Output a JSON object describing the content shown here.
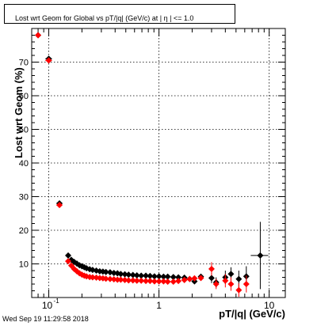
{
  "title": "Lost wrt Geom for Global vs pT/|q| (GeV/c) at |   η | <= 1.0",
  "ylabel": "Lost wrt Geom (%)",
  "xlabel": "pT/|q| (GeV/c)",
  "timestamp": "Wed Sep 19 11:29:58 2018",
  "chart_data": {
    "type": "scatter",
    "title": "Lost wrt Geom for Global vs pT/|q| (GeV/c) at |   η | <= 1.0",
    "xlabel": "pT/|q| (GeV/c)",
    "ylabel": "Lost wrt Geom (%)",
    "xscale": "log",
    "xlim": [
      0.07,
      14
    ],
    "ylim": [
      0,
      80
    ],
    "grid": true,
    "x_tick_labels": [
      "10^-1",
      "1",
      "10"
    ],
    "y_tick_labels": [
      "10",
      "20",
      "30",
      "40",
      "50",
      "60",
      "70"
    ],
    "series": [
      {
        "color": "#000000",
        "points": [
          {
            "x": 0.08,
            "y": 78,
            "xerr": 0.003
          },
          {
            "x": 0.1,
            "y": 71,
            "xerr": 0.007
          },
          {
            "x": 0.125,
            "y": 28,
            "xerr": 0.008
          },
          {
            "x": 0.15,
            "y": 12.5
          },
          {
            "x": 0.16,
            "y": 11.2
          },
          {
            "x": 0.17,
            "y": 10.6
          },
          {
            "x": 0.18,
            "y": 10.1
          },
          {
            "x": 0.19,
            "y": 9.6
          },
          {
            "x": 0.2,
            "y": 9.3
          },
          {
            "x": 0.21,
            "y": 9.0
          },
          {
            "x": 0.22,
            "y": 8.7
          },
          {
            "x": 0.235,
            "y": 8.4
          },
          {
            "x": 0.25,
            "y": 8.2
          },
          {
            "x": 0.27,
            "y": 8.0
          },
          {
            "x": 0.29,
            "y": 7.8
          },
          {
            "x": 0.31,
            "y": 7.7
          },
          {
            "x": 0.33,
            "y": 7.6
          },
          {
            "x": 0.36,
            "y": 7.5
          },
          {
            "x": 0.39,
            "y": 7.3
          },
          {
            "x": 0.42,
            "y": 7.2
          },
          {
            "x": 0.45,
            "y": 7.0
          },
          {
            "x": 0.49,
            "y": 6.9
          },
          {
            "x": 0.53,
            "y": 6.8
          },
          {
            "x": 0.58,
            "y": 6.7
          },
          {
            "x": 0.63,
            "y": 6.6
          },
          {
            "x": 0.69,
            "y": 6.5
          },
          {
            "x": 0.76,
            "y": 6.5
          },
          {
            "x": 0.83,
            "y": 6.4
          },
          {
            "x": 0.91,
            "y": 6.3
          },
          {
            "x": 1.0,
            "y": 6.3
          },
          {
            "x": 1.1,
            "y": 6.2
          },
          {
            "x": 1.2,
            "y": 6.2
          },
          {
            "x": 1.35,
            "y": 6.1
          },
          {
            "x": 1.5,
            "y": 6.0
          },
          {
            "x": 1.7,
            "y": 5.9
          },
          {
            "x": 1.9,
            "y": 5.5
          },
          {
            "x": 2.1,
            "y": 4.8
          },
          {
            "x": 2.4,
            "y": 6.2
          },
          {
            "x": 3.0,
            "y": 5.8,
            "yerr": 1.5
          },
          {
            "x": 3.3,
            "y": 4.5,
            "yerr": 1.5
          },
          {
            "x": 4.0,
            "y": 6.0,
            "yerr": 2.0
          },
          {
            "x": 4.5,
            "y": 7.0,
            "yerr": 2.0
          },
          {
            "x": 5.3,
            "y": 5.5,
            "yerr": 2.5
          },
          {
            "x": 6.2,
            "y": 6.3,
            "yerr": 3.0
          },
          {
            "x": 8.3,
            "y": 12.5,
            "xerr": 1.5,
            "yerr": 10.0
          }
        ]
      },
      {
        "color": "#ff0000",
        "points": [
          {
            "x": 0.08,
            "y": 78,
            "xerr": 0.003
          },
          {
            "x": 0.1,
            "y": 70.5,
            "xerr": 0.007
          },
          {
            "x": 0.125,
            "y": 27.5,
            "xerr": 0.008
          },
          {
            "x": 0.15,
            "y": 10.8
          },
          {
            "x": 0.16,
            "y": 9.5
          },
          {
            "x": 0.17,
            "y": 8.5
          },
          {
            "x": 0.18,
            "y": 7.8
          },
          {
            "x": 0.19,
            "y": 7.2
          },
          {
            "x": 0.2,
            "y": 6.8
          },
          {
            "x": 0.21,
            "y": 6.5
          },
          {
            "x": 0.22,
            "y": 6.3
          },
          {
            "x": 0.235,
            "y": 6.1
          },
          {
            "x": 0.25,
            "y": 6.0
          },
          {
            "x": 0.27,
            "y": 5.9
          },
          {
            "x": 0.29,
            "y": 5.8
          },
          {
            "x": 0.31,
            "y": 5.7
          },
          {
            "x": 0.33,
            "y": 5.6
          },
          {
            "x": 0.36,
            "y": 5.5
          },
          {
            "x": 0.39,
            "y": 5.4
          },
          {
            "x": 0.42,
            "y": 5.3
          },
          {
            "x": 0.45,
            "y": 5.3
          },
          {
            "x": 0.49,
            "y": 5.2
          },
          {
            "x": 0.53,
            "y": 5.1
          },
          {
            "x": 0.58,
            "y": 5.1
          },
          {
            "x": 0.63,
            "y": 5.0
          },
          {
            "x": 0.69,
            "y": 5.0
          },
          {
            "x": 0.76,
            "y": 4.9
          },
          {
            "x": 0.83,
            "y": 4.9
          },
          {
            "x": 0.91,
            "y": 4.8
          },
          {
            "x": 1.0,
            "y": 4.8
          },
          {
            "x": 1.1,
            "y": 4.8
          },
          {
            "x": 1.2,
            "y": 4.7
          },
          {
            "x": 1.35,
            "y": 4.7
          },
          {
            "x": 1.5,
            "y": 4.9
          },
          {
            "x": 1.7,
            "y": 5.2
          },
          {
            "x": 1.9,
            "y": 5.5
          },
          {
            "x": 2.1,
            "y": 5.7
          },
          {
            "x": 2.4,
            "y": 5.8
          },
          {
            "x": 3.0,
            "y": 8.5,
            "yerr": 2.0
          },
          {
            "x": 3.3,
            "y": 4.0,
            "yerr": 1.5
          },
          {
            "x": 4.0,
            "y": 5.0,
            "yerr": 2.0
          },
          {
            "x": 4.5,
            "y": 4.0,
            "yerr": 2.0
          },
          {
            "x": 5.3,
            "y": 2.2,
            "yerr": 2.0
          },
          {
            "x": 6.2,
            "y": 4.0,
            "yerr": 2.5
          }
        ]
      }
    ]
  }
}
